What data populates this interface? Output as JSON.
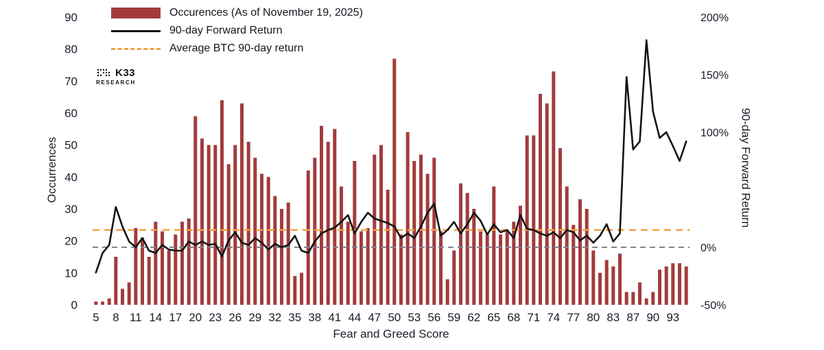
{
  "brand": {
    "name": "K33",
    "sub": "RESEARCH"
  },
  "chart_data": {
    "type": "combo-bar-line",
    "title": "",
    "x_axis": {
      "title": "Fear and Greed Score",
      "tick_every": 3
    },
    "left_axis": {
      "title": "Occurrences",
      "min": 0,
      "max": 90,
      "tick_step": 10
    },
    "right_axis": {
      "title": "90-day Forward Return",
      "min": -50,
      "max": 200,
      "tick_labels": [
        {
          "label": "200%",
          "value": 200
        },
        {
          "label": "150%",
          "value": 150
        },
        {
          "label": "100%",
          "value": 100
        },
        {
          "label": "0%",
          "value": 0
        },
        {
          "label": "-50%",
          "value": -50
        }
      ]
    },
    "legend": [
      {
        "label": "Occurences (As of November 19, 2025)",
        "type": "bar",
        "color": "#a23c3c"
      },
      {
        "label": "90-day Forward Return",
        "type": "line",
        "color": "#141414"
      },
      {
        "label": "Average BTC 90-day return",
        "type": "dashed",
        "color": "#f5a142"
      }
    ],
    "average_btc_90day_return_pct": 15,
    "zero_line_pct": 0,
    "categories": [
      5,
      6,
      7,
      8,
      9,
      10,
      11,
      12,
      13,
      14,
      15,
      16,
      17,
      18,
      19,
      20,
      21,
      22,
      23,
      24,
      25,
      26,
      27,
      28,
      29,
      30,
      31,
      32,
      33,
      34,
      35,
      36,
      37,
      38,
      39,
      40,
      41,
      42,
      43,
      44,
      45,
      46,
      47,
      48,
      49,
      50,
      51,
      52,
      53,
      54,
      55,
      56,
      57,
      58,
      59,
      60,
      61,
      62,
      63,
      64,
      65,
      66,
      67,
      68,
      69,
      70,
      71,
      72,
      73,
      74,
      75,
      76,
      77,
      78,
      79,
      80,
      81,
      82,
      83,
      84,
      86,
      87,
      88,
      89,
      90,
      91,
      92,
      93,
      94,
      95
    ],
    "series": [
      {
        "name": "Occurrences",
        "axis": "left",
        "values": [
          1,
          1,
          2,
          15,
          5,
          7,
          24,
          21,
          15,
          26,
          23,
          17,
          22,
          26,
          27,
          59,
          52,
          50,
          50,
          64,
          44,
          50,
          63,
          51,
          46,
          41,
          40,
          34,
          30,
          32,
          9,
          10,
          42,
          46,
          56,
          51,
          55,
          37,
          26,
          45,
          23,
          24,
          47,
          50,
          36,
          77,
          22,
          54,
          45,
          47,
          41,
          46,
          23,
          8,
          17,
          38,
          35,
          30,
          23,
          22,
          37,
          22,
          23,
          26,
          31,
          53,
          53,
          66,
          63,
          73,
          49,
          37,
          25,
          33,
          30,
          17,
          10,
          14,
          12,
          16,
          4,
          4,
          7,
          2,
          4,
          11,
          12,
          13,
          13,
          12
        ]
      },
      {
        "name": "90-day Forward Return",
        "axis": "right",
        "values": [
          -22,
          -5,
          2,
          35,
          18,
          5,
          0,
          8,
          -3,
          -5,
          2,
          -2,
          -3,
          -3,
          5,
          2,
          5,
          2,
          3,
          -8,
          6,
          13,
          4,
          2,
          8,
          4,
          -2,
          3,
          0,
          2,
          10,
          -3,
          -5,
          5,
          12,
          15,
          17,
          22,
          28,
          12,
          22,
          30,
          25,
          23,
          21,
          18,
          8,
          12,
          8,
          18,
          30,
          38,
          10,
          15,
          22,
          12,
          20,
          30,
          23,
          11,
          20,
          13,
          15,
          8,
          28,
          16,
          15,
          12,
          10,
          13,
          8,
          15,
          13,
          6,
          10,
          4,
          10,
          20,
          5,
          12,
          148,
          85,
          92,
          180,
          118,
          95,
          100,
          88,
          75,
          92
        ]
      }
    ],
    "colors": {
      "bars": "#a23c3c",
      "line": "#141414",
      "average": "#f5a142",
      "zero": "#82828f"
    }
  }
}
